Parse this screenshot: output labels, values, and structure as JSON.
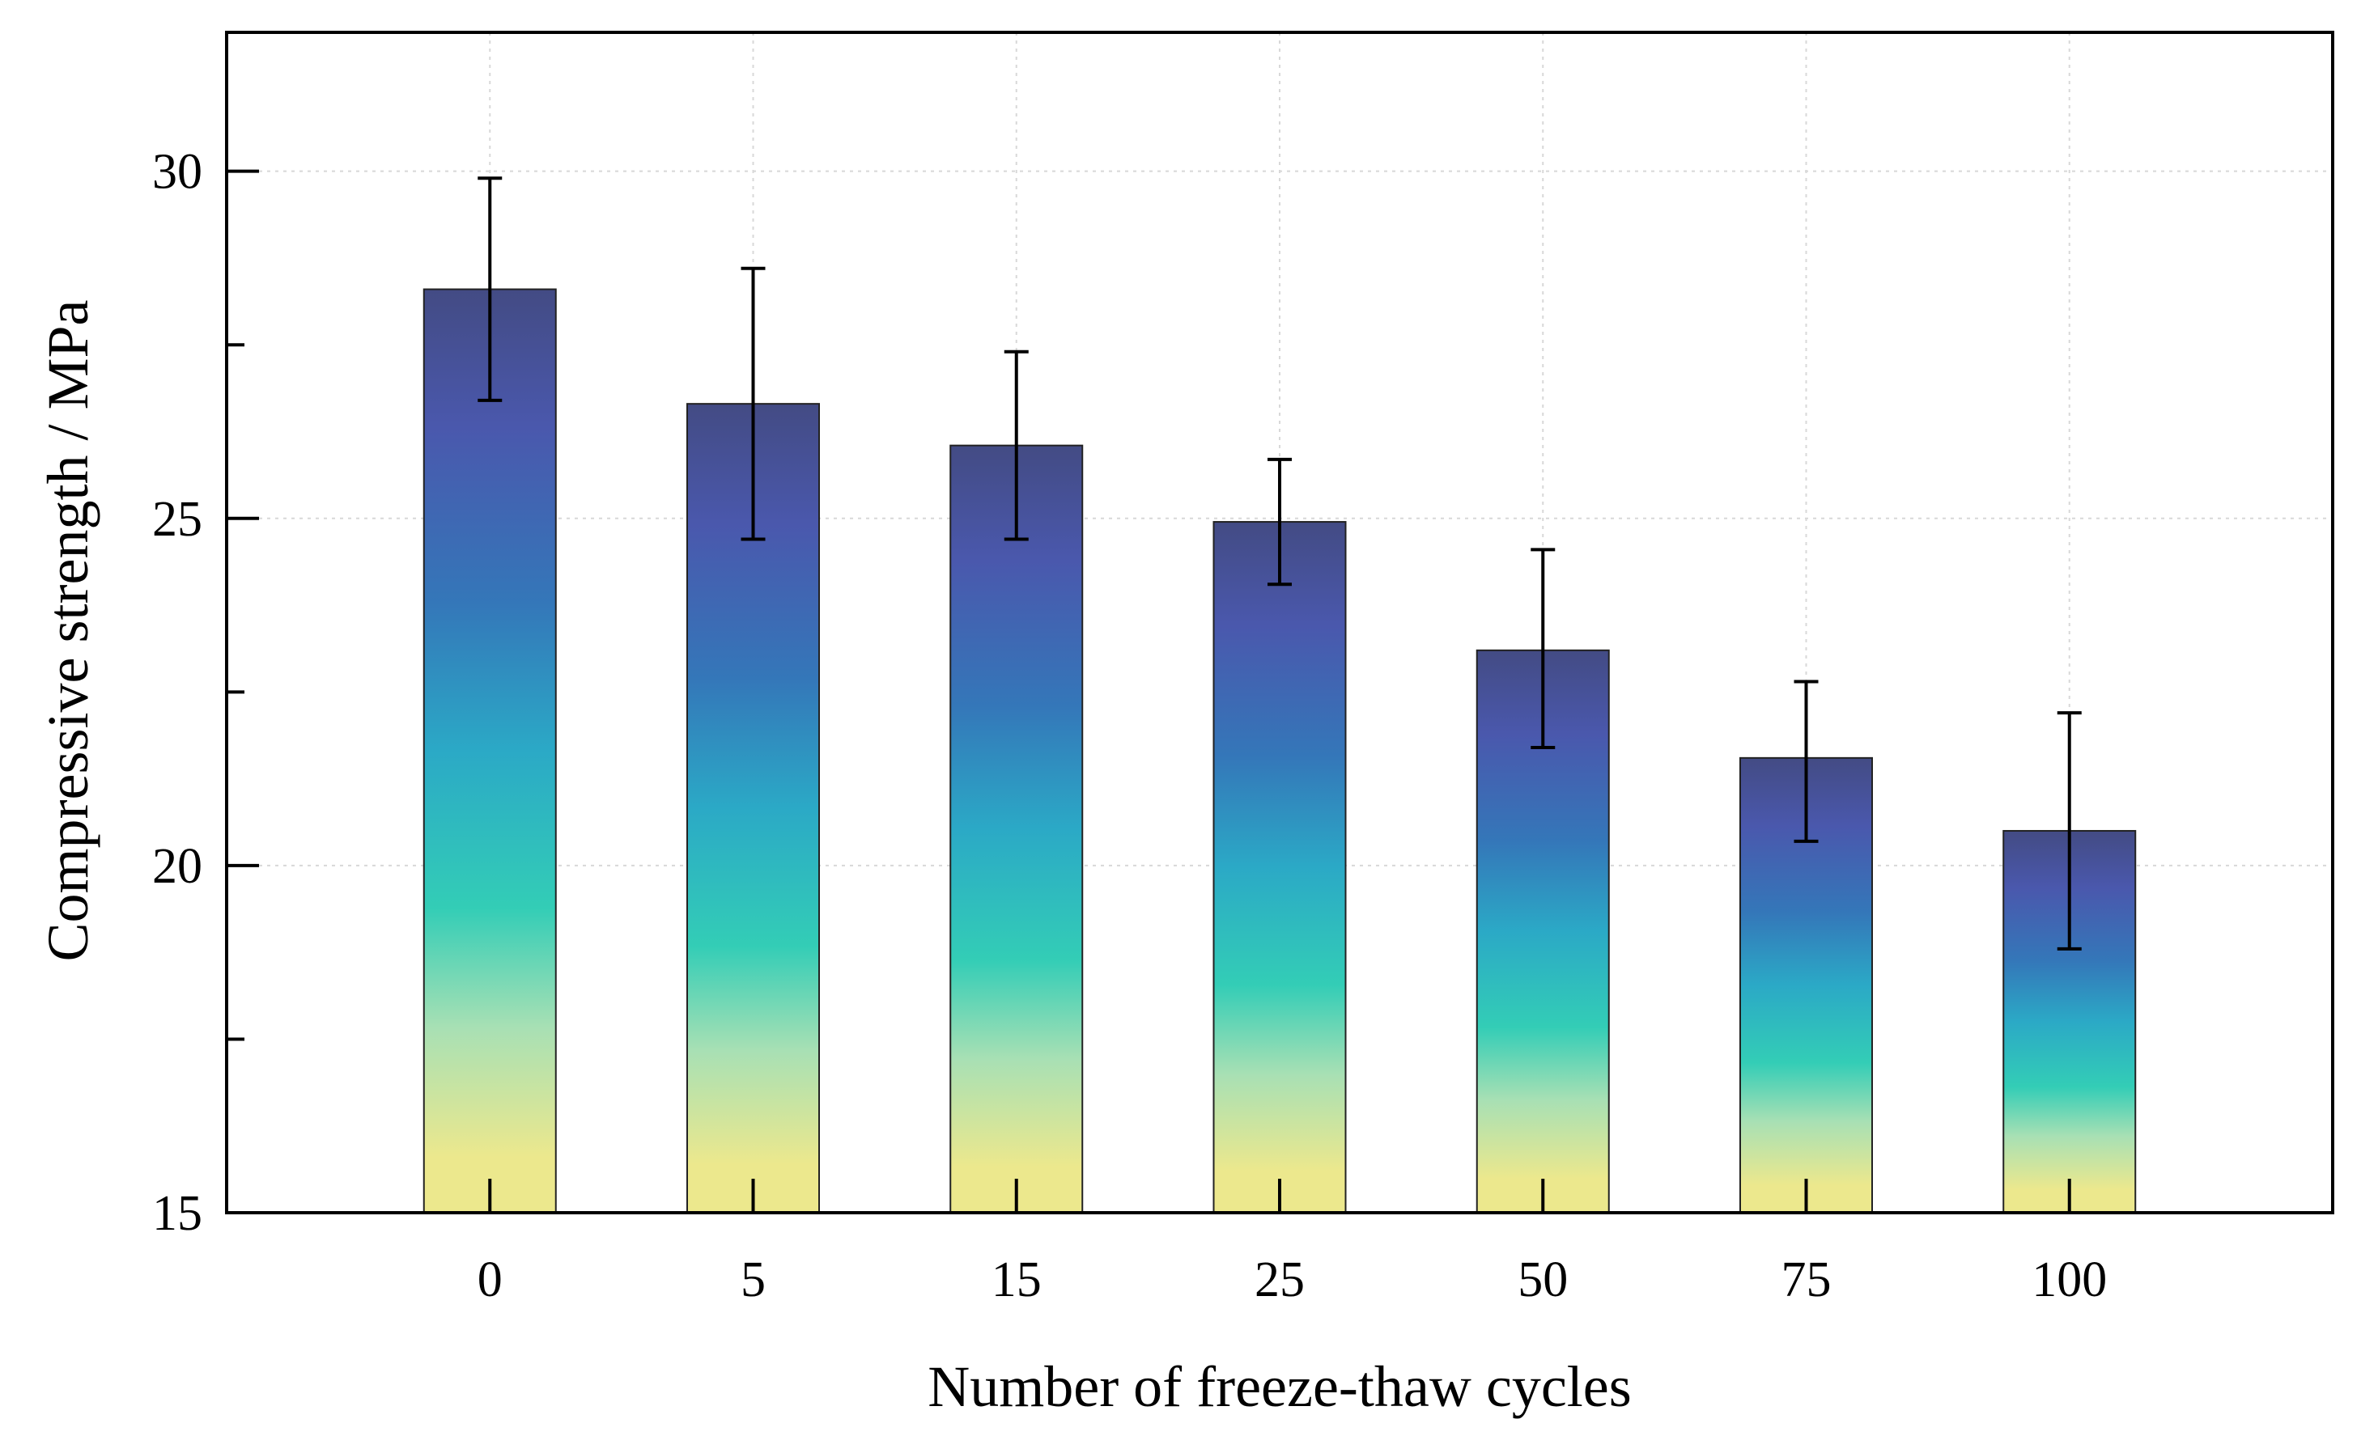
{
  "chart_data": {
    "type": "bar",
    "title": "",
    "xlabel": "Number of freeze-thaw cycles",
    "ylabel": "Compressive strength / MPa",
    "categories": [
      "0",
      "5",
      "15",
      "25",
      "50",
      "75",
      "100"
    ],
    "values": [
      28.3,
      26.65,
      26.05,
      24.95,
      23.1,
      21.55,
      20.5
    ],
    "error_low": [
      1.6,
      1.95,
      1.35,
      0.9,
      1.4,
      1.2,
      1.7
    ],
    "error_high": [
      1.6,
      1.95,
      1.35,
      0.9,
      1.45,
      1.1,
      1.7
    ],
    "ylim": [
      15,
      32
    ],
    "yticks": [
      15,
      20,
      25,
      30
    ],
    "grid": true,
    "fill": "vertical gradient (viridis-like: yellow at base to dark blue at top)",
    "colors": {
      "grad_bottom": "#ece88d",
      "grad_light_green": "#a8e0b4",
      "grad_teal": "#33cdb6",
      "grad_cyan": "#2ba9c6",
      "grad_blue": "#3477b9",
      "grad_indigo": "#4a58ad",
      "grad_top": "#434b84",
      "axis": "#000000",
      "grid": "#d8d8d8"
    }
  }
}
